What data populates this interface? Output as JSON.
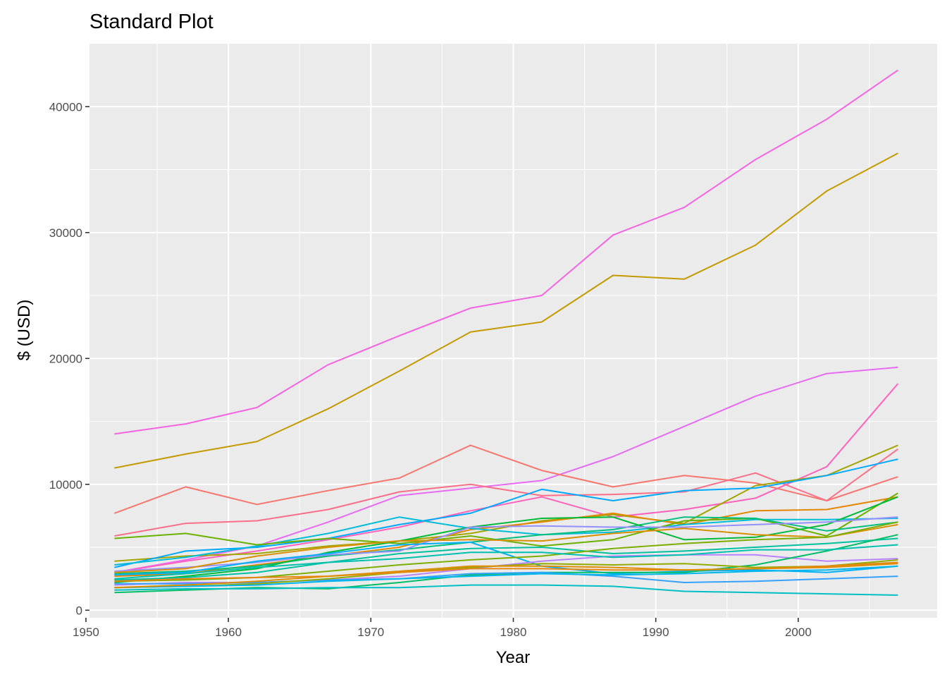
{
  "chart_data": {
    "type": "line",
    "title": "Standard Plot",
    "xlabel": "Year",
    "ylabel": "$ (USD)",
    "xlim": [
      1950.25,
      2009.75
    ],
    "ylim": [
      -600,
      45000
    ],
    "x_ticks": [
      1950,
      1960,
      1970,
      1980,
      1990,
      2000
    ],
    "y_ticks": [
      0,
      10000,
      20000,
      30000,
      40000
    ],
    "grid": true,
    "legend": "none",
    "x": [
      1952,
      1957,
      1962,
      1967,
      1972,
      1977,
      1982,
      1987,
      1992,
      1997,
      2002,
      2007
    ],
    "series": [
      {
        "color": "#F564E3",
        "values": [
          14000,
          14800,
          16100,
          19500,
          21800,
          24000,
          25000,
          29800,
          32000,
          35800,
          39000,
          42900
        ]
      },
      {
        "color": "#C49A00",
        "values": [
          11300,
          12400,
          13400,
          16000,
          19000,
          22100,
          22900,
          26600,
          26300,
          29000,
          33300,
          36300
        ]
      },
      {
        "color": "#E76BF3",
        "values": [
          3000,
          4000,
          5100,
          7000,
          9100,
          9700,
          10300,
          12200,
          14600,
          17000,
          18800,
          19300
        ]
      },
      {
        "color": "#FF62BC",
        "values": [
          3000,
          3900,
          4700,
          5600,
          6600,
          7900,
          9000,
          7400,
          8000,
          8900,
          11400,
          18000
        ]
      },
      {
        "color": "#F8766D",
        "values": [
          7700,
          9800,
          8400,
          9500,
          10500,
          13100,
          11100,
          9800,
          10700,
          10100,
          8700,
          10600
        ]
      },
      {
        "color": "#FD6F88",
        "values": [
          5900,
          6900,
          7100,
          8000,
          9400,
          10000,
          9100,
          9200,
          9400,
          10900,
          8700,
          12800
        ]
      },
      {
        "color": "#A3A500",
        "values": [
          3900,
          4300,
          4500,
          5100,
          5500,
          6100,
          7100,
          7600,
          6900,
          9900,
          10700,
          13100
        ]
      },
      {
        "color": "#00A9FF",
        "values": [
          3400,
          4700,
          5000,
          5700,
          6800,
          7700,
          9600,
          8700,
          9500,
          9700,
          10700,
          12000
        ]
      },
      {
        "color": "#E58700",
        "values": [
          2700,
          2900,
          3600,
          4300,
          5000,
          6400,
          7000,
          7700,
          6800,
          7900,
          8000,
          9000
        ]
      },
      {
        "color": "#00BCD8",
        "values": [
          3600,
          4200,
          5100,
          6100,
          7400,
          6500,
          6000,
          6200,
          6800,
          7200,
          7200,
          7300
        ]
      },
      {
        "color": "#6BB100",
        "values": [
          5700,
          6100,
          5200,
          5700,
          5300,
          5900,
          5100,
          5600,
          7100,
          7300,
          5900,
          9300
        ]
      },
      {
        "color": "#00BF7D",
        "values": [
          2900,
          3100,
          3500,
          4300,
          4800,
          5400,
          6000,
          6400,
          7400,
          7300,
          6300,
          7000
        ]
      },
      {
        "color": "#00BA38",
        "values": [
          2200,
          2700,
          3300,
          4600,
          5500,
          6600,
          7300,
          7400,
          5600,
          5800,
          6800,
          9000
        ]
      },
      {
        "color": "#9590FF",
        "values": [
          3100,
          3400,
          3800,
          4400,
          4700,
          6600,
          6700,
          6600,
          6600,
          6800,
          7000,
          7400
        ]
      },
      {
        "color": "#D89000",
        "values": [
          3000,
          3300,
          4300,
          5000,
          5500,
          5600,
          5500,
          6100,
          6500,
          6000,
          5800,
          6800
        ]
      },
      {
        "color": "#00C19F",
        "values": [
          2400,
          2600,
          3000,
          3800,
          4500,
          4900,
          5000,
          4500,
          4700,
          5000,
          5300,
          5700
        ]
      },
      {
        "color": "#00B0F6",
        "values": [
          2800,
          3000,
          3900,
          4500,
          5200,
          5400,
          3500,
          2900,
          3100,
          3200,
          3000,
          3500
        ]
      },
      {
        "color": "#B983FF",
        "values": [
          2000,
          2200,
          2200,
          2400,
          2700,
          3300,
          3900,
          4300,
          4400,
          4400,
          3900,
          4100
        ]
      },
      {
        "color": "#7CAE00",
        "values": [
          2300,
          2400,
          2600,
          3100,
          3600,
          4000,
          4300,
          4900,
          5300,
          5600,
          5800,
          7000
        ]
      },
      {
        "color": "#00BE67",
        "values": [
          1400,
          1600,
          1800,
          1700,
          2200,
          2800,
          3000,
          3000,
          3000,
          3600,
          4700,
          6000
        ]
      },
      {
        "color": "#00C0AF",
        "values": [
          2500,
          2900,
          3400,
          3800,
          4100,
          4600,
          4600,
          4200,
          4400,
          4800,
          4800,
          5200
        ]
      },
      {
        "color": "#35A2FF",
        "values": [
          2100,
          2100,
          2200,
          2400,
          2500,
          2900,
          3000,
          2700,
          2200,
          2300,
          2500,
          2700
        ]
      },
      {
        "color": "#93AA00",
        "values": [
          1800,
          1900,
          2100,
          2500,
          3000,
          3400,
          3700,
          3600,
          3700,
          3400,
          3500,
          4000
        ]
      },
      {
        "color": "#00B6EB",
        "values": [
          1800,
          1900,
          2000,
          2300,
          2500,
          2700,
          2900,
          2800,
          2900,
          3100,
          3200,
          3500
        ]
      },
      {
        "color": "#00BFC4",
        "values": [
          1600,
          1700,
          1700,
          1800,
          1800,
          2000,
          2000,
          1900,
          1500,
          1400,
          1300,
          1200
        ]
      },
      {
        "color": "#E68613",
        "values": [
          2300,
          2500,
          2600,
          2700,
          3000,
          3300,
          3300,
          3200,
          3200,
          3300,
          3500,
          3800
        ]
      },
      {
        "color": "#DE8C00",
        "values": [
          1800,
          2000,
          2300,
          2700,
          3100,
          3500,
          3500,
          3400,
          3200,
          3300,
          3400,
          3700
        ]
      }
    ]
  }
}
